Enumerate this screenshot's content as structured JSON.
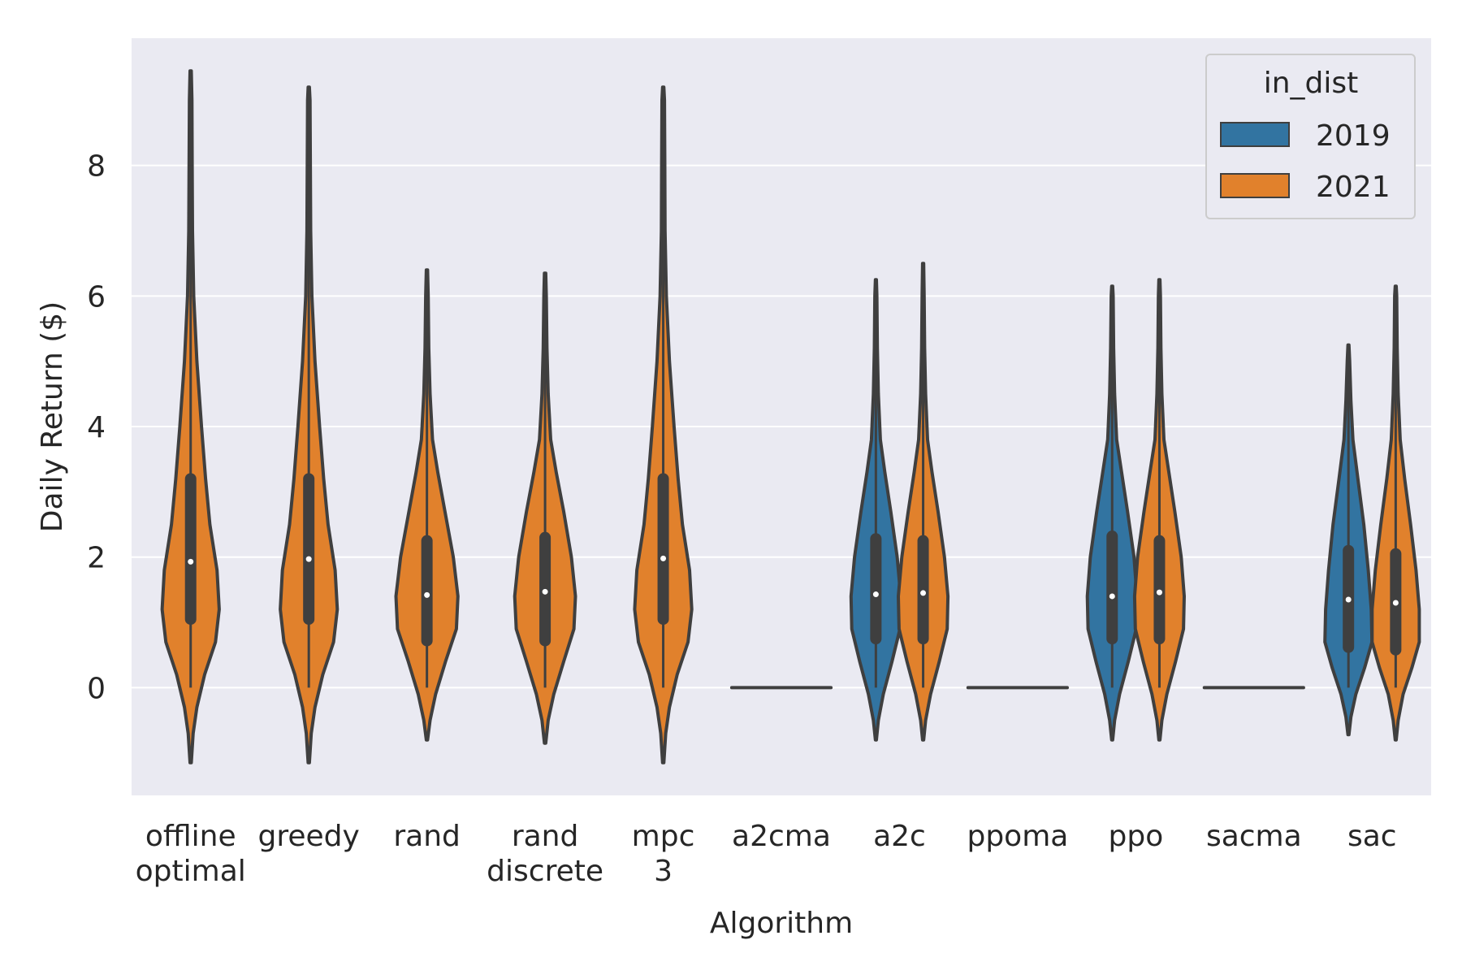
{
  "chart_data": {
    "type": "violin",
    "title": "",
    "xlabel": "Algorithm",
    "ylabel": "Daily Return ($)",
    "ylim": [
      -1.65,
      9.95
    ],
    "yticks": [
      0,
      2,
      4,
      6,
      8
    ],
    "grid": true,
    "legend": {
      "title": "in_dist",
      "position": "top-right",
      "entries": [
        {
          "label": "2019",
          "color": "#3274a1"
        },
        {
          "label": "2021",
          "color": "#e1812c"
        }
      ]
    },
    "categories": [
      {
        "label": [
          "offline",
          "optimal"
        ]
      },
      {
        "label": [
          "greedy"
        ]
      },
      {
        "label": [
          "rand"
        ]
      },
      {
        "label": [
          "rand",
          "discrete"
        ]
      },
      {
        "label": [
          "mpc",
          "3"
        ]
      },
      {
        "label": [
          "a2cma"
        ]
      },
      {
        "label": [
          "a2c"
        ]
      },
      {
        "label": [
          "ppoma"
        ]
      },
      {
        "label": [
          "ppo"
        ]
      },
      {
        "label": [
          "sacma"
        ]
      },
      {
        "label": [
          "sac"
        ]
      }
    ],
    "violins": [
      {
        "category": 0,
        "series": "2021",
        "min": -1.15,
        "max": 9.45,
        "whisker_low": 0,
        "q1": 1.05,
        "median": 1.93,
        "q3": 3.2,
        "profile": [
          [
            -1.15,
            0.02
          ],
          [
            -0.7,
            0.08
          ],
          [
            -0.3,
            0.2
          ],
          [
            0.2,
            0.45
          ],
          [
            0.7,
            0.8
          ],
          [
            1.2,
            0.92
          ],
          [
            1.8,
            0.85
          ],
          [
            2.5,
            0.62
          ],
          [
            3.2,
            0.48
          ],
          [
            4.0,
            0.35
          ],
          [
            5.0,
            0.2
          ],
          [
            6.0,
            0.1
          ],
          [
            7.0,
            0.06
          ],
          [
            8.0,
            0.05
          ],
          [
            9.0,
            0.04
          ],
          [
            9.45,
            0.02
          ]
        ]
      },
      {
        "category": 1,
        "series": "2021",
        "min": -1.15,
        "max": 9.2,
        "whisker_low": 0,
        "q1": 1.05,
        "median": 1.97,
        "q3": 3.2,
        "profile": [
          [
            -1.15,
            0.02
          ],
          [
            -0.7,
            0.08
          ],
          [
            -0.3,
            0.2
          ],
          [
            0.2,
            0.45
          ],
          [
            0.7,
            0.8
          ],
          [
            1.2,
            0.92
          ],
          [
            1.8,
            0.85
          ],
          [
            2.5,
            0.62
          ],
          [
            3.2,
            0.48
          ],
          [
            4.0,
            0.35
          ],
          [
            5.0,
            0.2
          ],
          [
            6.0,
            0.1
          ],
          [
            7.0,
            0.06
          ],
          [
            8.0,
            0.05
          ],
          [
            9.0,
            0.04
          ],
          [
            9.2,
            0.02
          ]
        ]
      },
      {
        "category": 2,
        "series": "2021",
        "min": -0.8,
        "max": 6.4,
        "whisker_low": 0,
        "q1": 0.72,
        "median": 1.42,
        "q3": 2.25,
        "profile": [
          [
            -0.8,
            0.02
          ],
          [
            -0.5,
            0.1
          ],
          [
            -0.1,
            0.28
          ],
          [
            0.4,
            0.6
          ],
          [
            0.9,
            0.95
          ],
          [
            1.4,
            1.0
          ],
          [
            2.0,
            0.85
          ],
          [
            2.7,
            0.58
          ],
          [
            3.3,
            0.35
          ],
          [
            3.8,
            0.18
          ],
          [
            4.5,
            0.1
          ],
          [
            5.2,
            0.06
          ],
          [
            6.0,
            0.04
          ],
          [
            6.4,
            0.02
          ]
        ]
      },
      {
        "category": 3,
        "series": "2021",
        "min": -0.85,
        "max": 6.35,
        "whisker_low": 0,
        "q1": 0.72,
        "median": 1.47,
        "q3": 2.3,
        "profile": [
          [
            -0.85,
            0.02
          ],
          [
            -0.5,
            0.1
          ],
          [
            -0.1,
            0.28
          ],
          [
            0.4,
            0.6
          ],
          [
            0.9,
            0.93
          ],
          [
            1.4,
            0.98
          ],
          [
            2.0,
            0.85
          ],
          [
            2.7,
            0.6
          ],
          [
            3.3,
            0.36
          ],
          [
            3.8,
            0.18
          ],
          [
            4.5,
            0.1
          ],
          [
            5.2,
            0.06
          ],
          [
            6.0,
            0.04
          ],
          [
            6.35,
            0.02
          ]
        ]
      },
      {
        "category": 4,
        "series": "2021",
        "min": -1.15,
        "max": 9.2,
        "whisker_low": 0,
        "q1": 1.05,
        "median": 1.98,
        "q3": 3.2,
        "profile": [
          [
            -1.15,
            0.02
          ],
          [
            -0.7,
            0.08
          ],
          [
            -0.3,
            0.2
          ],
          [
            0.2,
            0.45
          ],
          [
            0.7,
            0.8
          ],
          [
            1.2,
            0.92
          ],
          [
            1.8,
            0.85
          ],
          [
            2.5,
            0.62
          ],
          [
            3.2,
            0.48
          ],
          [
            4.0,
            0.35
          ],
          [
            5.0,
            0.2
          ],
          [
            6.0,
            0.1
          ],
          [
            7.0,
            0.06
          ],
          [
            8.0,
            0.05
          ],
          [
            9.0,
            0.04
          ],
          [
            9.2,
            0.02
          ]
        ]
      },
      {
        "category": 5,
        "series": "all",
        "flat": true,
        "value": 0
      },
      {
        "category": 6,
        "series": "2019",
        "min": -0.8,
        "max": 6.25,
        "whisker_low": 0,
        "q1": 0.75,
        "median": 1.43,
        "q3": 2.28,
        "profile": [
          [
            -0.8,
            0.02
          ],
          [
            -0.5,
            0.1
          ],
          [
            -0.1,
            0.3
          ],
          [
            0.4,
            0.65
          ],
          [
            0.9,
            0.97
          ],
          [
            1.4,
            1.0
          ],
          [
            2.0,
            0.86
          ],
          [
            2.7,
            0.6
          ],
          [
            3.3,
            0.36
          ],
          [
            3.8,
            0.18
          ],
          [
            4.5,
            0.1
          ],
          [
            5.2,
            0.06
          ],
          [
            6.0,
            0.04
          ],
          [
            6.25,
            0.02
          ]
        ]
      },
      {
        "category": 6,
        "series": "2021",
        "min": -0.8,
        "max": 6.5,
        "whisker_low": 0,
        "q1": 0.75,
        "median": 1.45,
        "q3": 2.25,
        "profile": [
          [
            -0.8,
            0.02
          ],
          [
            -0.5,
            0.1
          ],
          [
            -0.1,
            0.3
          ],
          [
            0.4,
            0.65
          ],
          [
            0.9,
            0.97
          ],
          [
            1.4,
            1.0
          ],
          [
            2.0,
            0.86
          ],
          [
            2.7,
            0.6
          ],
          [
            3.3,
            0.36
          ],
          [
            3.8,
            0.18
          ],
          [
            4.5,
            0.1
          ],
          [
            5.2,
            0.06
          ],
          [
            6.0,
            0.04
          ],
          [
            6.5,
            0.02
          ]
        ]
      },
      {
        "category": 7,
        "series": "all",
        "flat": true,
        "value": 0
      },
      {
        "category": 8,
        "series": "2019",
        "min": -0.8,
        "max": 6.15,
        "whisker_low": 0,
        "q1": 0.75,
        "median": 1.4,
        "q3": 2.32,
        "profile": [
          [
            -0.8,
            0.02
          ],
          [
            -0.5,
            0.1
          ],
          [
            -0.1,
            0.3
          ],
          [
            0.4,
            0.65
          ],
          [
            0.9,
            0.97
          ],
          [
            1.4,
            1.0
          ],
          [
            2.0,
            0.88
          ],
          [
            2.7,
            0.62
          ],
          [
            3.3,
            0.38
          ],
          [
            3.8,
            0.18
          ],
          [
            4.5,
            0.1
          ],
          [
            5.2,
            0.06
          ],
          [
            6.0,
            0.04
          ],
          [
            6.15,
            0.02
          ]
        ]
      },
      {
        "category": 8,
        "series": "2021",
        "min": -0.8,
        "max": 6.25,
        "whisker_low": 0,
        "q1": 0.75,
        "median": 1.46,
        "q3": 2.25,
        "profile": [
          [
            -0.8,
            0.02
          ],
          [
            -0.5,
            0.1
          ],
          [
            -0.1,
            0.3
          ],
          [
            0.4,
            0.65
          ],
          [
            0.9,
            0.97
          ],
          [
            1.4,
            1.0
          ],
          [
            2.0,
            0.88
          ],
          [
            2.7,
            0.62
          ],
          [
            3.3,
            0.38
          ],
          [
            3.8,
            0.18
          ],
          [
            4.5,
            0.1
          ],
          [
            5.2,
            0.06
          ],
          [
            6.0,
            0.04
          ],
          [
            6.25,
            0.02
          ]
        ]
      },
      {
        "category": 9,
        "series": "all",
        "flat": true,
        "value": 0
      },
      {
        "category": 10,
        "series": "2019",
        "min": -0.72,
        "max": 5.25,
        "whisker_low": 0,
        "q1": 0.62,
        "median": 1.35,
        "q3": 2.1,
        "profile": [
          [
            -0.72,
            0.02
          ],
          [
            -0.45,
            0.1
          ],
          [
            -0.1,
            0.3
          ],
          [
            0.3,
            0.65
          ],
          [
            0.7,
            0.95
          ],
          [
            1.2,
            0.92
          ],
          [
            1.8,
            0.8
          ],
          [
            2.5,
            0.62
          ],
          [
            3.2,
            0.38
          ],
          [
            3.8,
            0.18
          ],
          [
            4.4,
            0.1
          ],
          [
            5.0,
            0.05
          ],
          [
            5.25,
            0.02
          ]
        ]
      },
      {
        "category": 10,
        "series": "2021",
        "min": -0.8,
        "max": 6.15,
        "whisker_low": 0,
        "q1": 0.58,
        "median": 1.3,
        "q3": 2.05,
        "profile": [
          [
            -0.8,
            0.02
          ],
          [
            -0.5,
            0.1
          ],
          [
            -0.1,
            0.3
          ],
          [
            0.3,
            0.65
          ],
          [
            0.7,
            0.95
          ],
          [
            1.2,
            0.95
          ],
          [
            1.8,
            0.82
          ],
          [
            2.5,
            0.6
          ],
          [
            3.2,
            0.36
          ],
          [
            3.8,
            0.18
          ],
          [
            4.5,
            0.1
          ],
          [
            5.2,
            0.06
          ],
          [
            6.0,
            0.04
          ],
          [
            6.15,
            0.02
          ]
        ]
      }
    ]
  }
}
